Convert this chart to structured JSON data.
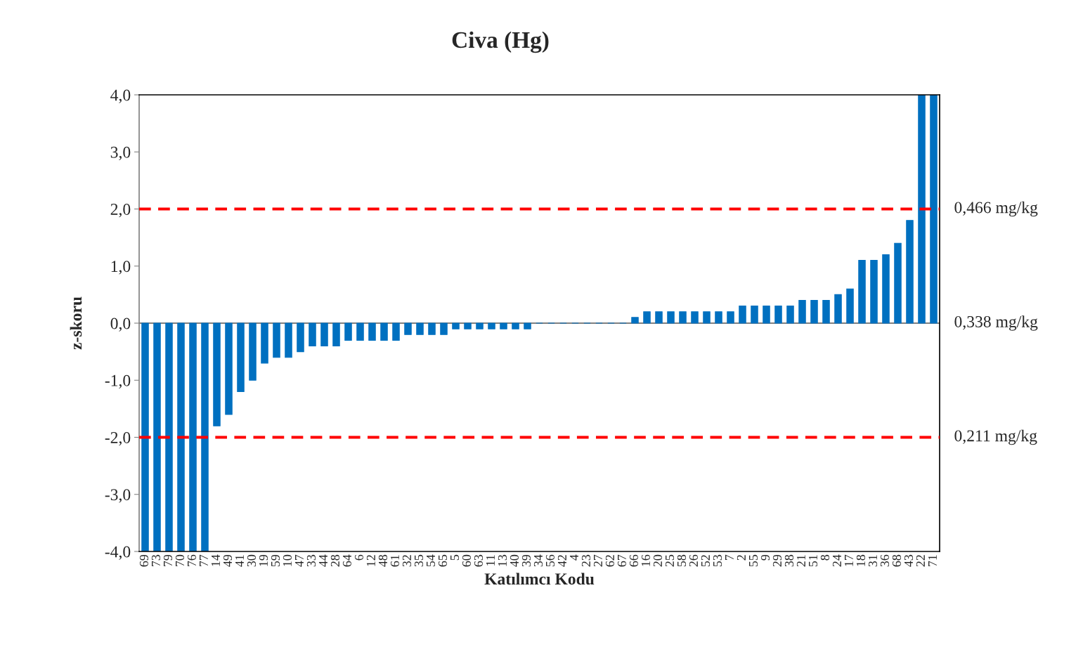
{
  "chart_data": {
    "type": "bar",
    "title": "Civa (Hg)",
    "xlabel": "Katılımcı Kodu",
    "ylabel": "z-skoru",
    "categories": [
      "69",
      "73",
      "79",
      "70",
      "76",
      "77",
      "14",
      "49",
      "41",
      "30",
      "19",
      "59",
      "10",
      "47",
      "33",
      "44",
      "28",
      "64",
      "6",
      "12",
      "48",
      "61",
      "32",
      "35",
      "54",
      "65",
      "5",
      "60",
      "63",
      "11",
      "13",
      "40",
      "39",
      "34",
      "56",
      "42",
      "4",
      "23",
      "27",
      "62",
      "67",
      "66",
      "16",
      "20",
      "25",
      "58",
      "26",
      "52",
      "53",
      "7",
      "2",
      "55",
      "9",
      "29",
      "38",
      "21",
      "51",
      "8",
      "24",
      "17",
      "18",
      "31",
      "36",
      "68",
      "43",
      "22",
      "71"
    ],
    "series": [
      {
        "color": "#0070c0",
        "values": [
          -4.0,
          -4.0,
          -4.0,
          -4.0,
          -4.0,
          -4.0,
          -1.8,
          -1.6,
          -1.2,
          -1.0,
          -0.7,
          -0.6,
          -0.6,
          -0.5,
          -0.4,
          -0.4,
          -0.4,
          -0.3,
          -0.3,
          -0.3,
          -0.3,
          -0.3,
          -0.2,
          -0.2,
          -0.2,
          -0.2,
          -0.1,
          -0.1,
          -0.1,
          -0.1,
          -0.1,
          -0.1,
          -0.1,
          0,
          0,
          0,
          0,
          0,
          0,
          0,
          0,
          0.1,
          0.2,
          0.2,
          0.2,
          0.2,
          0.2,
          0.2,
          0.2,
          0.2,
          0.3,
          0.3,
          0.3,
          0.3,
          0.3,
          0.4,
          0.4,
          0.4,
          0.5,
          0.6,
          1.1,
          1.1,
          1.2,
          1.4,
          1.8,
          4.0,
          4.0
        ]
      }
    ],
    "ylim": [
      -4.0,
      4.0
    ],
    "yticks": [
      {
        "value": -4,
        "label": "-4,0"
      },
      {
        "value": -3,
        "label": "-3,0"
      },
      {
        "value": -2,
        "label": "-2,0"
      },
      {
        "value": -1,
        "label": "-1,0"
      },
      {
        "value": 0,
        "label": "0,0"
      },
      {
        "value": 1,
        "label": "1,0"
      },
      {
        "value": 2,
        "label": "2,0"
      },
      {
        "value": 3,
        "label": "3,0"
      },
      {
        "value": 4,
        "label": "4,0"
      }
    ],
    "ref_lines": [
      {
        "axis": "y",
        "value": 2,
        "label": "0,466 mg/kg",
        "color": "#ff0000",
        "line_style": "dashed"
      },
      {
        "axis": "y",
        "value": 0,
        "label": "0,338 mg/kg",
        "color": "#808080",
        "line_style": "solid"
      },
      {
        "axis": "y",
        "value": -2,
        "label": "0,211 mg/kg",
        "color": "#ff0000",
        "line_style": "dashed"
      }
    ],
    "grid": false,
    "legend": false
  }
}
